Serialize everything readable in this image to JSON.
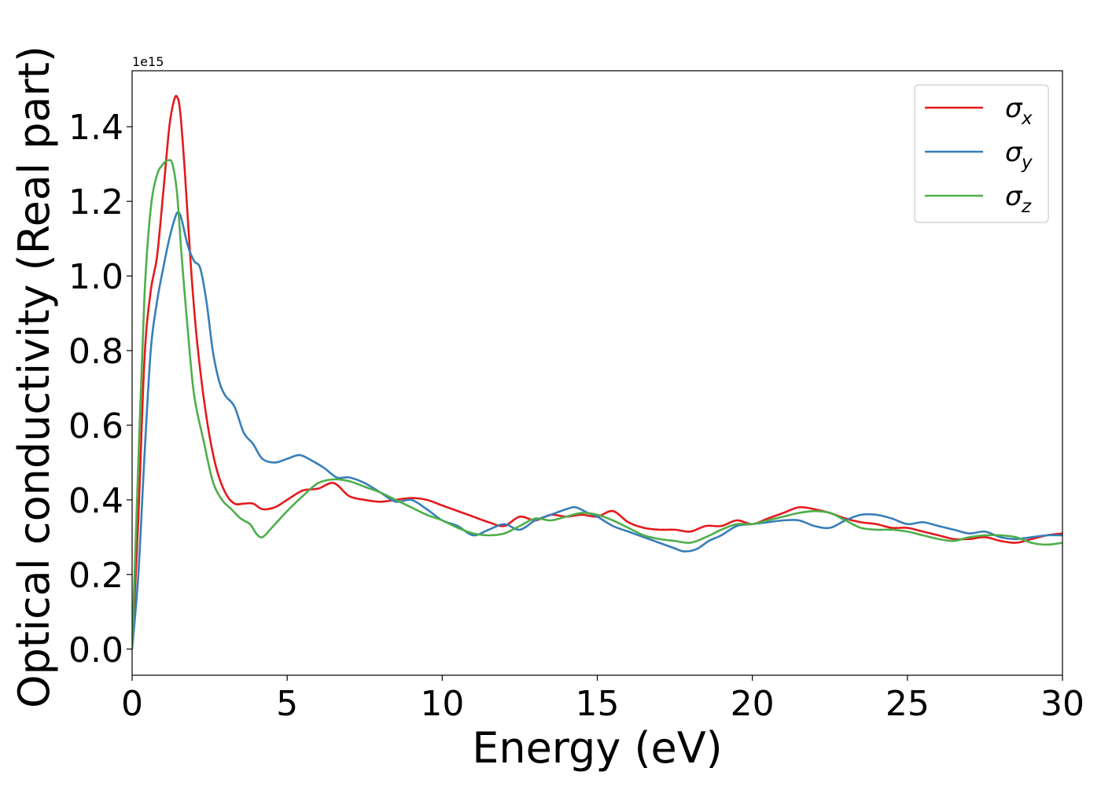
{
  "chart_data": {
    "type": "line",
    "xlabel": "Energy (eV)",
    "ylabel": "Optical conductivity (Real part)",
    "y_offset_text": "1e15",
    "xlim": [
      0,
      30
    ],
    "ylim": [
      -0.07,
      1.55
    ],
    "x_ticks": [
      0,
      5,
      10,
      15,
      20,
      25,
      30
    ],
    "y_ticks": [
      0.0,
      0.2,
      0.4,
      0.6,
      0.8,
      1.0,
      1.2,
      1.4
    ],
    "x_tick_labels": [
      "0",
      "5",
      "10",
      "15",
      "20",
      "25",
      "30"
    ],
    "y_tick_labels": [
      "0.0",
      "0.2",
      "0.4",
      "0.6",
      "0.8",
      "1.0",
      "1.2",
      "1.4"
    ],
    "y_units_multiplier": 1000000000000000.0,
    "grid": false,
    "legend_position": "top-right",
    "series": [
      {
        "name": "σx",
        "symbol": "σ",
        "subscript": "x",
        "color": "#e41a1c",
        "x": [
          0,
          0.2,
          0.4,
          0.6,
          0.8,
          1.0,
          1.2,
          1.35,
          1.45,
          1.55,
          1.7,
          1.9,
          2.1,
          2.4,
          2.7,
          3.0,
          3.3,
          3.6,
          3.9,
          4.2,
          4.6,
          5.0,
          5.5,
          6.0,
          6.5,
          7.0,
          7.5,
          8.0,
          8.5,
          9.0,
          9.5,
          10.0,
          10.5,
          11.0,
          11.5,
          12.0,
          12.5,
          13.0,
          13.5,
          14.0,
          14.5,
          15.0,
          15.5,
          16.0,
          16.5,
          17.0,
          17.5,
          18.0,
          18.5,
          19.0,
          19.5,
          20.0,
          20.5,
          21.0,
          21.5,
          22.0,
          22.5,
          23.0,
          23.5,
          24.0,
          24.5,
          25.0,
          25.5,
          26.0,
          26.5,
          27.0,
          27.5,
          28.0,
          28.5,
          29.0,
          29.5,
          30.0
        ],
        "values": [
          0.0,
          0.35,
          0.78,
          0.96,
          1.05,
          1.22,
          1.4,
          1.47,
          1.48,
          1.44,
          1.28,
          1.02,
          0.82,
          0.62,
          0.49,
          0.42,
          0.39,
          0.39,
          0.39,
          0.375,
          0.38,
          0.4,
          0.425,
          0.43,
          0.445,
          0.41,
          0.4,
          0.395,
          0.4,
          0.405,
          0.4,
          0.385,
          0.37,
          0.355,
          0.34,
          0.33,
          0.355,
          0.345,
          0.36,
          0.355,
          0.36,
          0.355,
          0.37,
          0.34,
          0.325,
          0.32,
          0.32,
          0.315,
          0.33,
          0.33,
          0.345,
          0.335,
          0.35,
          0.365,
          0.38,
          0.375,
          0.365,
          0.35,
          0.34,
          0.335,
          0.325,
          0.325,
          0.315,
          0.305,
          0.295,
          0.295,
          0.3,
          0.29,
          0.285,
          0.295,
          0.305,
          0.31
        ]
      },
      {
        "name": "σy",
        "symbol": "σ",
        "subscript": "y",
        "color": "#377eb8",
        "x": [
          0,
          0.2,
          0.4,
          0.6,
          0.8,
          1.0,
          1.2,
          1.4,
          1.5,
          1.6,
          1.8,
          2.0,
          2.2,
          2.4,
          2.6,
          2.8,
          3.0,
          3.3,
          3.6,
          3.9,
          4.2,
          4.6,
          5.0,
          5.4,
          5.8,
          6.2,
          6.6,
          7.0,
          7.5,
          8.0,
          8.5,
          9.0,
          9.5,
          10.0,
          10.5,
          11.0,
          11.5,
          12.0,
          12.5,
          13.0,
          13.5,
          14.0,
          14.3,
          14.7,
          15.0,
          15.5,
          16.0,
          16.5,
          17.0,
          17.5,
          17.8,
          18.2,
          18.6,
          19.0,
          19.5,
          20.0,
          20.5,
          21.0,
          21.5,
          22.0,
          22.5,
          23.0,
          23.5,
          24.0,
          24.5,
          25.0,
          25.5,
          26.0,
          26.5,
          27.0,
          27.5,
          28.0,
          28.5,
          29.0,
          29.5,
          30.0
        ],
        "values": [
          0.0,
          0.2,
          0.52,
          0.8,
          0.93,
          1.02,
          1.1,
          1.16,
          1.17,
          1.15,
          1.08,
          1.04,
          1.02,
          0.93,
          0.8,
          0.72,
          0.68,
          0.65,
          0.58,
          0.55,
          0.51,
          0.5,
          0.51,
          0.52,
          0.505,
          0.485,
          0.46,
          0.46,
          0.445,
          0.42,
          0.395,
          0.4,
          0.375,
          0.345,
          0.33,
          0.305,
          0.32,
          0.335,
          0.32,
          0.345,
          0.36,
          0.375,
          0.38,
          0.365,
          0.355,
          0.33,
          0.315,
          0.3,
          0.285,
          0.27,
          0.262,
          0.268,
          0.29,
          0.305,
          0.33,
          0.335,
          0.34,
          0.345,
          0.345,
          0.33,
          0.325,
          0.345,
          0.36,
          0.36,
          0.35,
          0.335,
          0.34,
          0.33,
          0.32,
          0.31,
          0.315,
          0.3,
          0.295,
          0.3,
          0.305,
          0.305
        ]
      },
      {
        "name": "σz",
        "symbol": "σ",
        "subscript": "z",
        "color": "#4daf4a",
        "x": [
          0,
          0.2,
          0.4,
          0.6,
          0.8,
          1.0,
          1.15,
          1.3,
          1.45,
          1.6,
          1.8,
          2.0,
          2.3,
          2.6,
          2.9,
          3.2,
          3.5,
          3.8,
          4.0,
          4.2,
          4.5,
          5.0,
          5.5,
          6.0,
          6.5,
          7.0,
          7.5,
          8.0,
          8.5,
          9.0,
          9.5,
          10.0,
          10.5,
          11.0,
          11.5,
          12.0,
          12.5,
          13.0,
          13.5,
          14.0,
          14.5,
          15.0,
          15.5,
          16.0,
          16.5,
          17.0,
          17.5,
          18.0,
          18.5,
          19.0,
          19.5,
          20.0,
          20.5,
          21.0,
          21.5,
          22.0,
          22.5,
          23.0,
          23.5,
          24.0,
          24.5,
          25.0,
          25.5,
          26.0,
          26.5,
          27.0,
          27.5,
          28.0,
          28.5,
          29.0,
          29.5,
          30.0
        ],
        "values": [
          0.0,
          0.5,
          0.95,
          1.18,
          1.27,
          1.3,
          1.31,
          1.3,
          1.22,
          1.05,
          0.85,
          0.68,
          0.56,
          0.45,
          0.4,
          0.375,
          0.35,
          0.335,
          0.31,
          0.3,
          0.325,
          0.37,
          0.41,
          0.445,
          0.455,
          0.45,
          0.435,
          0.42,
          0.4,
          0.38,
          0.36,
          0.345,
          0.325,
          0.31,
          0.305,
          0.31,
          0.33,
          0.35,
          0.345,
          0.355,
          0.365,
          0.36,
          0.345,
          0.325,
          0.305,
          0.295,
          0.29,
          0.285,
          0.3,
          0.32,
          0.335,
          0.335,
          0.345,
          0.355,
          0.365,
          0.37,
          0.365,
          0.345,
          0.325,
          0.32,
          0.32,
          0.315,
          0.305,
          0.295,
          0.29,
          0.3,
          0.305,
          0.305,
          0.3,
          0.285,
          0.28,
          0.285
        ]
      }
    ]
  }
}
